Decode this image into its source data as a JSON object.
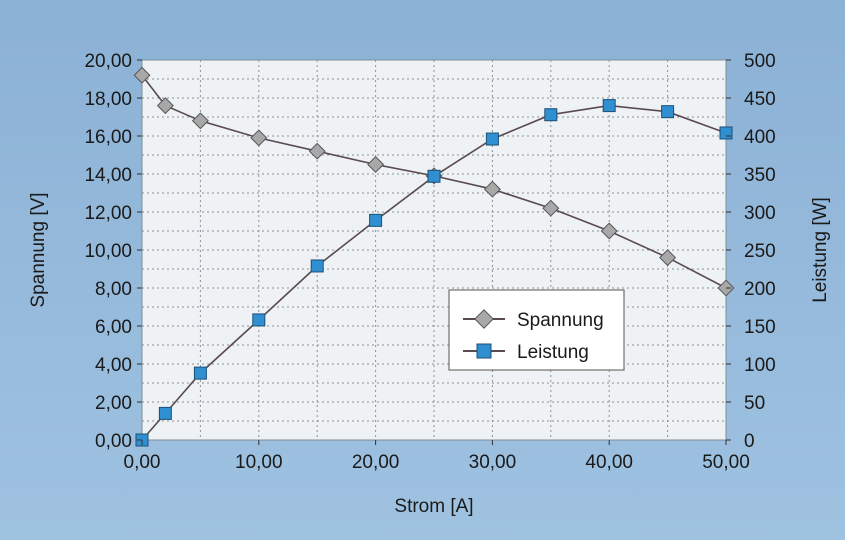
{
  "chart_data": {
    "type": "line",
    "xlabel": "Strom [A]",
    "ylabel_left": "Spannung [V]",
    "ylabel_right": "Leistung [W]",
    "xlim": [
      0,
      50
    ],
    "ylim_left": [
      0,
      20
    ],
    "ylim_right": [
      0,
      500
    ],
    "x_ticks": [
      "0,00",
      "10,00",
      "20,00",
      "30,00",
      "40,00",
      "50,00"
    ],
    "y_left_ticks": [
      "0,00",
      "2,00",
      "4,00",
      "6,00",
      "8,00",
      "10,00",
      "12,00",
      "14,00",
      "16,00",
      "18,00",
      "20,00"
    ],
    "y_right_ticks": [
      "0",
      "50",
      "100",
      "150",
      "200",
      "250",
      "300",
      "350",
      "400",
      "450",
      "500"
    ],
    "grid": true,
    "legend_position": "center-right",
    "series": [
      {
        "name": "Spannung",
        "axis": "left",
        "marker": "diamond",
        "marker_color": "#a8a8a8",
        "line_color": "#5a4a52",
        "x": [
          0,
          2,
          5,
          10,
          15,
          20,
          25,
          30,
          35,
          40,
          45,
          50
        ],
        "values": [
          19.2,
          17.6,
          16.8,
          15.9,
          15.2,
          14.5,
          13.9,
          13.2,
          12.2,
          11.0,
          9.6,
          8.0
        ]
      },
      {
        "name": "Leistung",
        "axis": "right",
        "marker": "square",
        "marker_color": "#2f8fd0",
        "line_color": "#5a4a52",
        "x": [
          0,
          2,
          5,
          10,
          15,
          20,
          25,
          30,
          35,
          40,
          45,
          50
        ],
        "values": [
          0,
          35,
          88,
          158,
          229,
          289,
          347,
          396,
          428,
          440,
          432,
          404
        ]
      }
    ]
  }
}
